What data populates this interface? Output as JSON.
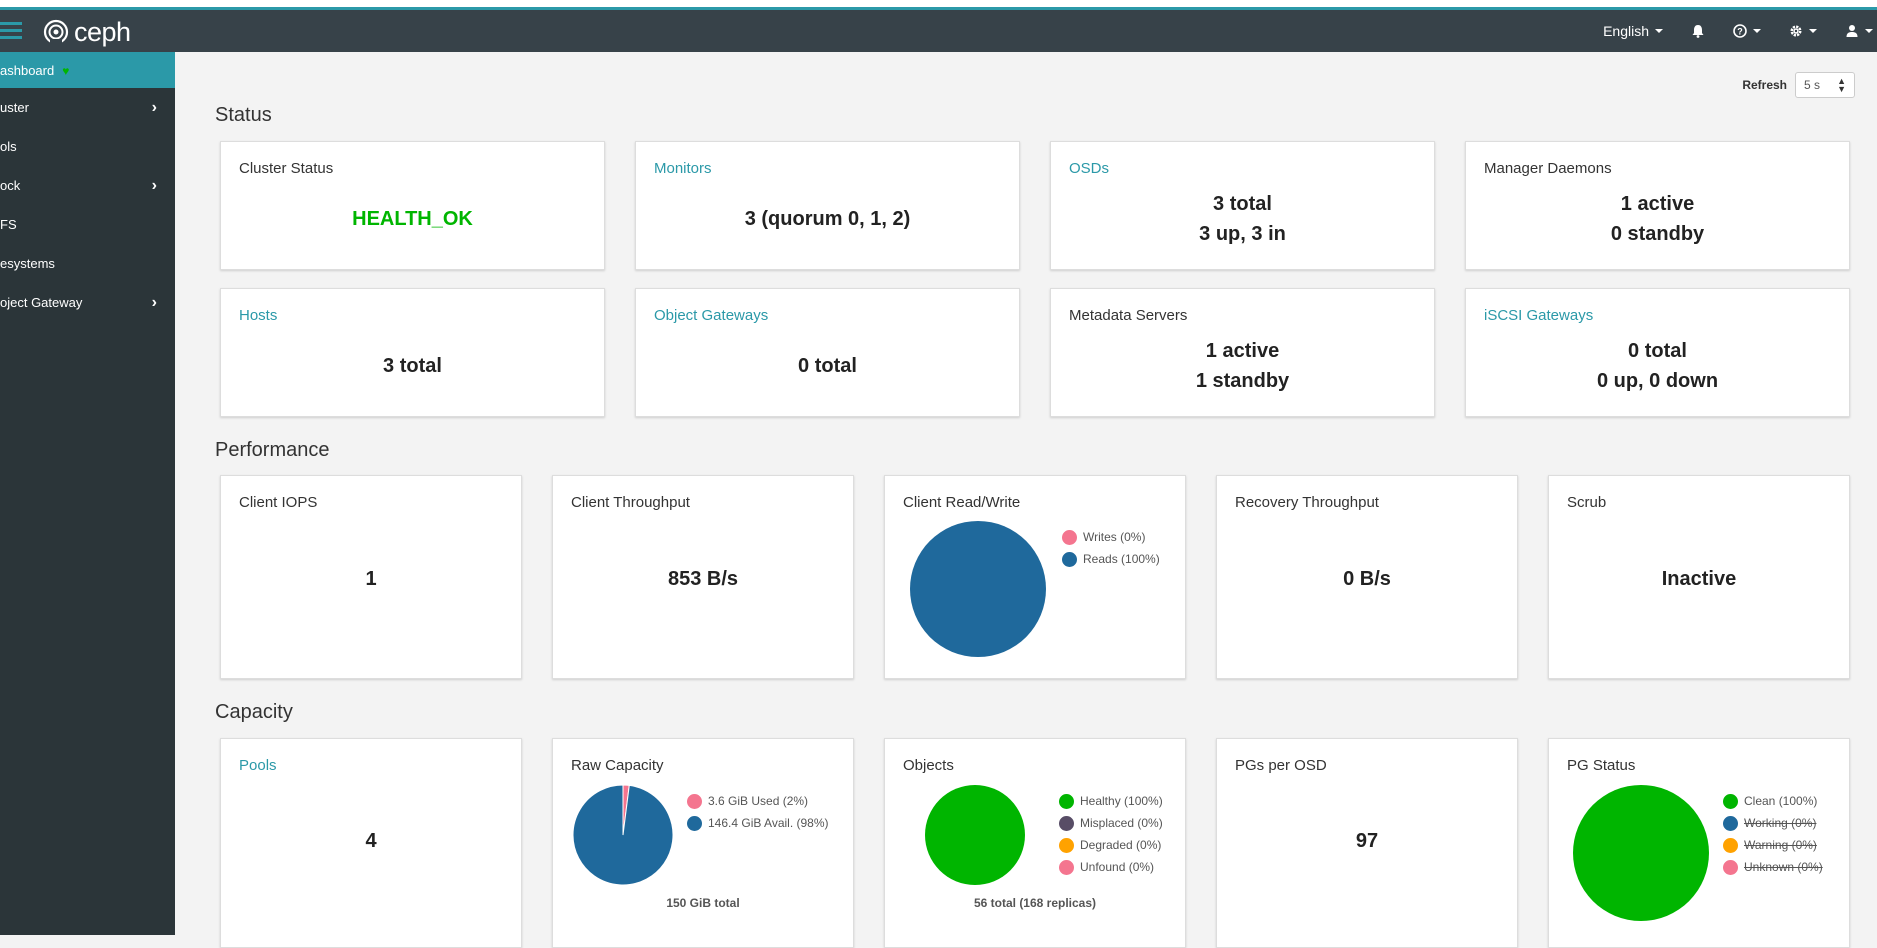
{
  "topbar": {
    "brand": "ceph",
    "language": "English"
  },
  "sidebar": {
    "items": [
      {
        "label": "ashboard",
        "active": true
      },
      {
        "label": "uster",
        "chevron": true
      },
      {
        "label": "ols"
      },
      {
        "label": "ock",
        "chevron": true
      },
      {
        "label": "FS"
      },
      {
        "label": "esystems"
      },
      {
        "label": "oject Gateway",
        "chevron": true
      }
    ]
  },
  "refresh": {
    "label": "Refresh",
    "value": "5 s"
  },
  "sections": {
    "status": "Status",
    "performance": "Performance",
    "capacity": "Capacity"
  },
  "status_cards": {
    "cluster_status": {
      "title": "Cluster Status",
      "value": "HEALTH_OK"
    },
    "monitors": {
      "title": "Monitors",
      "value": "3 (quorum 0, 1, 2)"
    },
    "osds": {
      "title": "OSDs",
      "line1": "3 total",
      "line2": "3 up, 3 in"
    },
    "manager": {
      "title": "Manager Daemons",
      "line1": "1 active",
      "line2": "0 standby"
    },
    "hosts": {
      "title": "Hosts",
      "value": "3 total"
    },
    "object_gateways": {
      "title": "Object Gateways",
      "value": "0 total"
    },
    "metadata": {
      "title": "Metadata Servers",
      "line1": "1 active",
      "line2": "1 standby"
    },
    "iscsi": {
      "title": "iSCSI Gateways",
      "line1": "0 total",
      "line2": "0 up, 0 down"
    }
  },
  "performance_cards": {
    "iops": {
      "title": "Client IOPS",
      "value": "1"
    },
    "throughput": {
      "title": "Client Throughput",
      "value": "853 B/s"
    },
    "readwrite": {
      "title": "Client Read/Write",
      "legend": [
        {
          "label": "Writes (0%)",
          "color": "#f4758f"
        },
        {
          "label": "Reads (100%)",
          "color": "#1f699c"
        }
      ]
    },
    "recovery": {
      "title": "Recovery Throughput",
      "value": "0 B/s"
    },
    "scrub": {
      "title": "Scrub",
      "value": "Inactive"
    }
  },
  "capacity_cards": {
    "pools": {
      "title": "Pools",
      "value": "4"
    },
    "raw": {
      "title": "Raw Capacity",
      "total": "150 GiB total",
      "legend": [
        {
          "label": "3.6 GiB Used (2%)",
          "color": "#f4758f"
        },
        {
          "label": "146.4 GiB Avail. (98%)",
          "color": "#1f699c"
        }
      ]
    },
    "objects": {
      "title": "Objects",
      "total": "56 total (168 replicas)",
      "legend": [
        {
          "label": "Healthy (100%)",
          "color": "#00b500"
        },
        {
          "label": "Misplaced (0%)",
          "color": "#584d66"
        },
        {
          "label": "Degraded (0%)",
          "color": "#ffa200"
        },
        {
          "label": "Unfound (0%)",
          "color": "#f4758f"
        }
      ]
    },
    "pgs": {
      "title": "PGs per OSD",
      "value": "97"
    },
    "pgstatus": {
      "title": "PG Status",
      "legend": [
        {
          "label": "Clean (100%)",
          "color": "#00b500"
        },
        {
          "label": "Working (0%)",
          "color": "#1f699c",
          "struck": true
        },
        {
          "label": "Warning (0%)",
          "color": "#ffa200",
          "struck": true
        },
        {
          "label": "Unknown (0%)",
          "color": "#f4758f",
          "struck": true
        }
      ]
    }
  },
  "chart_data": [
    {
      "type": "pie",
      "title": "Client Read/Write",
      "categories": [
        "Writes",
        "Reads"
      ],
      "values": [
        0,
        100
      ]
    },
    {
      "type": "pie",
      "title": "Raw Capacity",
      "categories": [
        "Used",
        "Avail."
      ],
      "values": [
        2,
        98
      ]
    },
    {
      "type": "pie",
      "title": "Objects",
      "categories": [
        "Healthy",
        "Misplaced",
        "Degraded",
        "Unfound"
      ],
      "values": [
        100,
        0,
        0,
        0
      ]
    },
    {
      "type": "pie",
      "title": "PG Status",
      "categories": [
        "Clean",
        "Working",
        "Warning",
        "Unknown"
      ],
      "values": [
        100,
        0,
        0,
        0
      ]
    }
  ]
}
